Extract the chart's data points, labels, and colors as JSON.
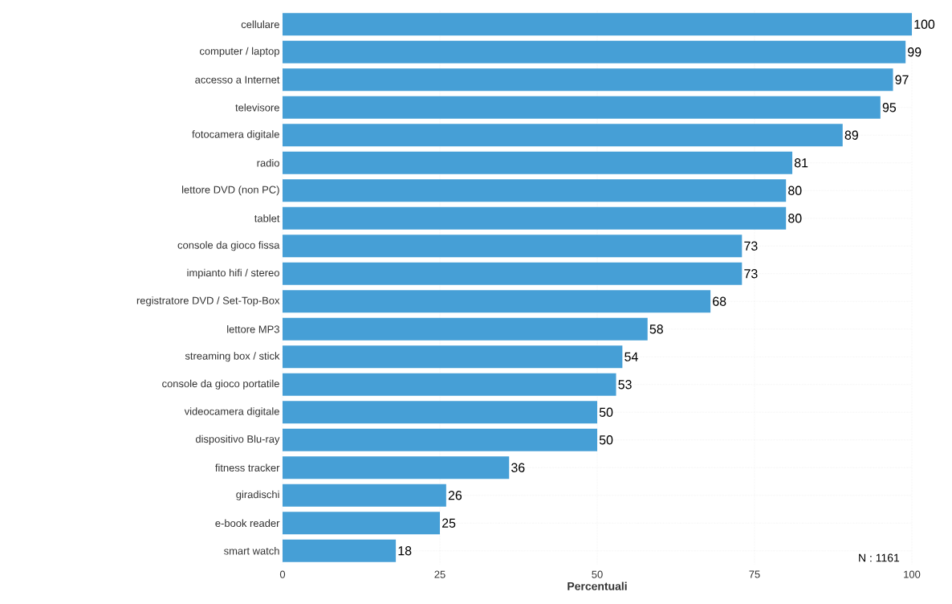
{
  "chart_data": {
    "type": "bar",
    "orientation": "horizontal",
    "xlabel": "Percentuali",
    "categories": [
      "cellulare",
      "computer / laptop",
      "accesso a Internet",
      "televisore",
      "fotocamera digitale",
      "radio",
      "lettore DVD (non PC)",
      "tablet",
      "console da gioco fissa",
      "impianto hifi / stereo",
      "registratore DVD / Set-Top-Box",
      "lettore MP3",
      "streaming box / stick",
      "console da gioco portatile",
      "videocamera digitale",
      "dispositivo Blu-ray",
      "fitness tracker",
      "giradischi",
      "e-book reader",
      "smart watch"
    ],
    "values": [
      100,
      99,
      97,
      95,
      89,
      81,
      80,
      80,
      73,
      73,
      68,
      58,
      54,
      53,
      50,
      50,
      36,
      26,
      25,
      18
    ],
    "color": "#469fd6",
    "data_labels": true,
    "grid": true,
    "xlim": [
      0,
      100
    ],
    "xticks": [
      0,
      25,
      50,
      75,
      100
    ],
    "annotations": [
      "N : 1161"
    ]
  }
}
